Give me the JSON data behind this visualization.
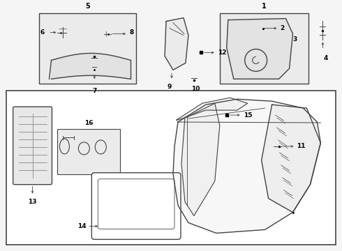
{
  "bg_color": "#f5f5f5",
  "line_color": "#444444",
  "box_bg": "#ebebeb",
  "label_color": "#000000",
  "fig_w": 4.9,
  "fig_h": 3.6,
  "dpi": 100
}
